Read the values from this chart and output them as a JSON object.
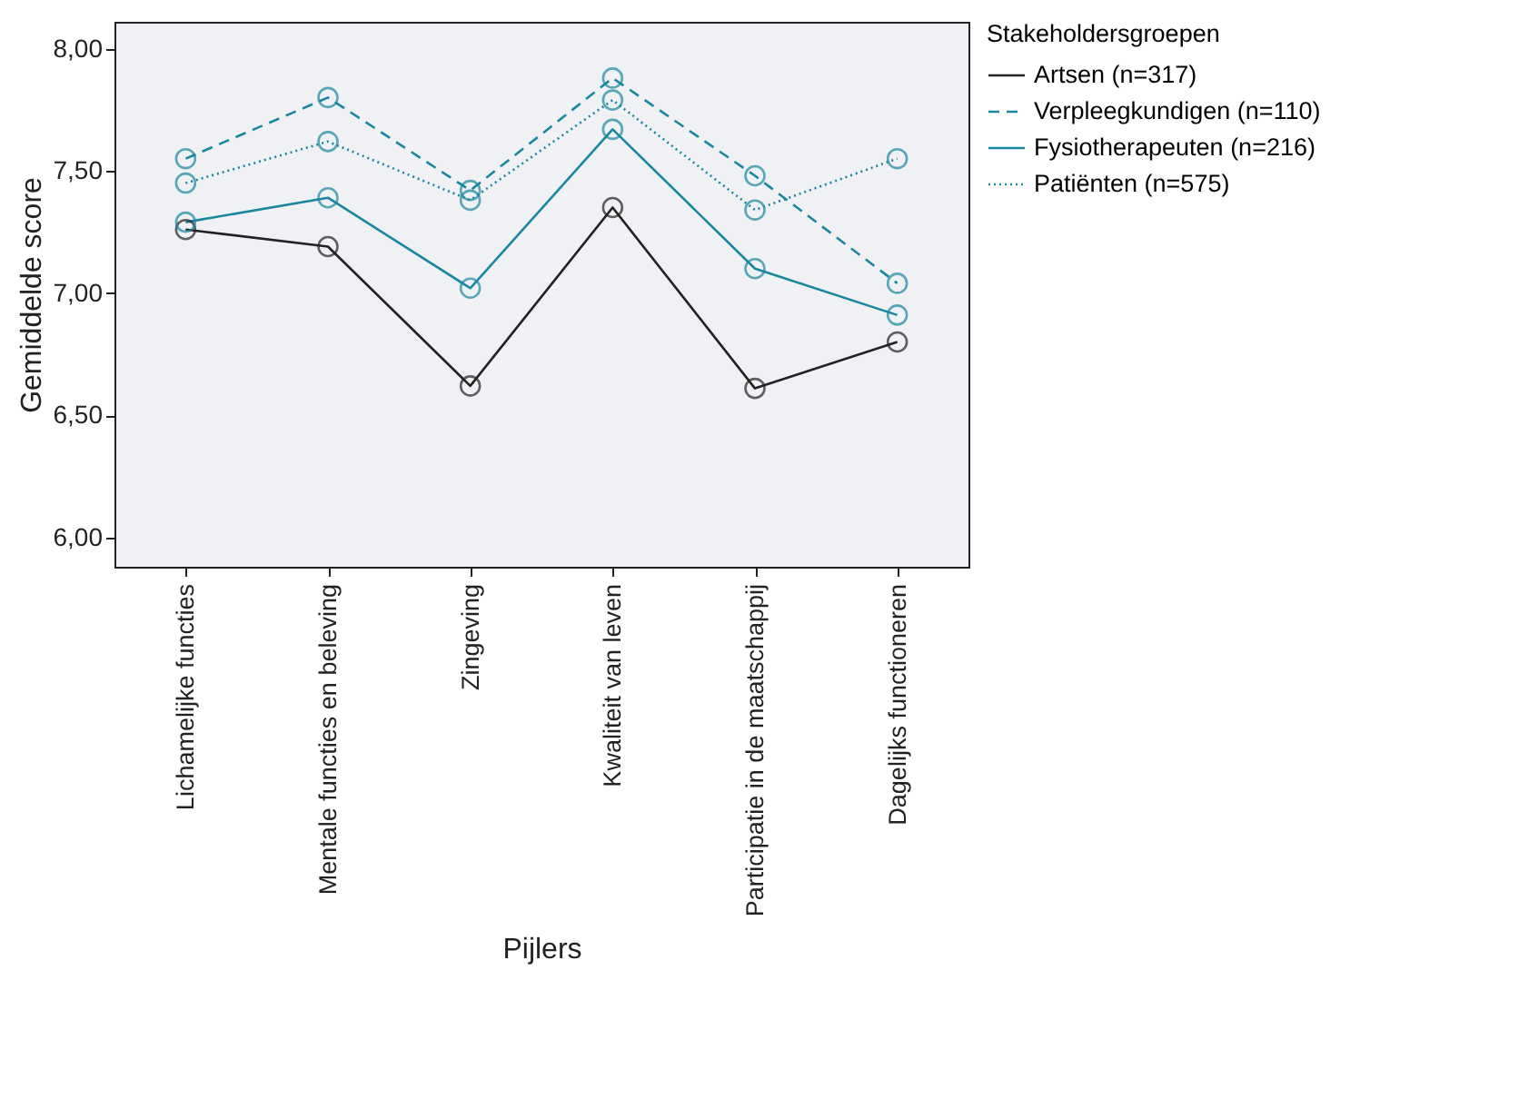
{
  "chart_data": {
    "type": "line",
    "xlabel": "Pijlers",
    "ylabel": "Gemiddelde score",
    "legend_title": "Stakeholdersgroepen",
    "legend": "right",
    "marker": "circle",
    "grid": false,
    "categories": [
      "Lichamelijke functies",
      "Mentale functies en beleving",
      "Zingeving",
      "Kwaliteit van leven",
      "Participatie in de maatschappij",
      "Dagelijks functioneren"
    ],
    "ylim": [
      5.88,
      8.11
    ],
    "yticks": [
      {
        "value": 6,
        "label": "6,00"
      },
      {
        "value": 6.5,
        "label": "6,50"
      },
      {
        "value": 7,
        "label": "7,00"
      },
      {
        "value": 7.5,
        "label": "7,50"
      },
      {
        "value": 8,
        "label": "8,00"
      }
    ],
    "series": [
      {
        "name": "Artsen (n=317)",
        "color": "#222222",
        "line_style": "solid",
        "values": [
          7.26,
          7.19,
          6.62,
          7.35,
          6.61,
          6.8
        ]
      },
      {
        "name": "Verpleegkundigen (n=110)",
        "color": "#1a87a0",
        "line_style": "dashed",
        "values": [
          7.55,
          7.8,
          7.42,
          7.88,
          7.48,
          7.04
        ]
      },
      {
        "name": "Fysiotherapeuten (n=216)",
        "color": "#1a87a0",
        "line_style": "solid",
        "values": [
          7.29,
          7.39,
          7.02,
          7.67,
          7.1,
          6.91
        ]
      },
      {
        "name": "Patiënten (n=575)",
        "color": "#1a87a0",
        "line_style": "dotted",
        "values": [
          7.45,
          7.62,
          7.38,
          7.79,
          7.34,
          7.55
        ]
      }
    ]
  }
}
